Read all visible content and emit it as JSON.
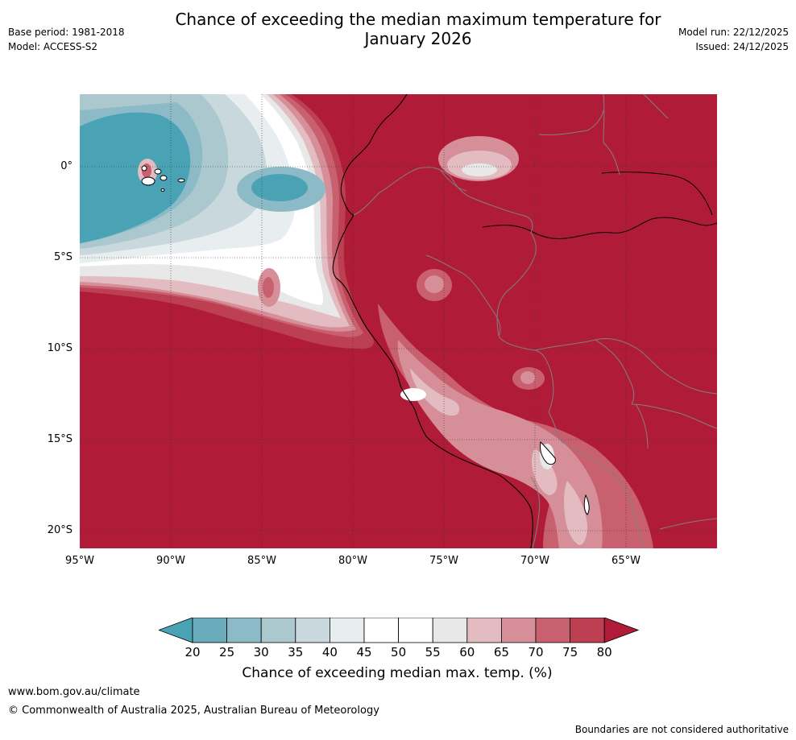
{
  "title_line1": "Chance of exceeding the median maximum temperature for",
  "title_line2": "January 2026",
  "base_period": "Base period: 1981-2018",
  "model": "Model: ACCESS-S2",
  "model_run": "Model run: 22/12/2025",
  "issued": "Issued: 24/12/2025",
  "lat_labels": [
    "0°",
    "5°S",
    "10°S",
    "15°S",
    "20°S"
  ],
  "lon_labels": [
    "95°W",
    "90°W",
    "85°W",
    "80°W",
    "75°W",
    "70°W",
    "65°W"
  ],
  "colorbar": {
    "ticks": [
      "20",
      "25",
      "30",
      "35",
      "40",
      "45",
      "50",
      "55",
      "60",
      "65",
      "70",
      "75",
      "80"
    ],
    "colors": [
      "#4aa3b4",
      "#6aacbb",
      "#8cbbc7",
      "#abc8cf",
      "#c8d8dc",
      "#e8eef0",
      "#ffffff",
      "#ffffff",
      "#e8e8e8",
      "#e3bcc1",
      "#d68f99",
      "#c9606f",
      "#bd4052",
      "#b01c38"
    ],
    "label": "Chance of exceeding median max. temp. (%)"
  },
  "website": "www.bom.gov.au/climate",
  "copyright": "© Commonwealth of Australia 2025, Australian Bureau of Meteorology",
  "disclaimer": "Boundaries are not considered authoritative"
}
